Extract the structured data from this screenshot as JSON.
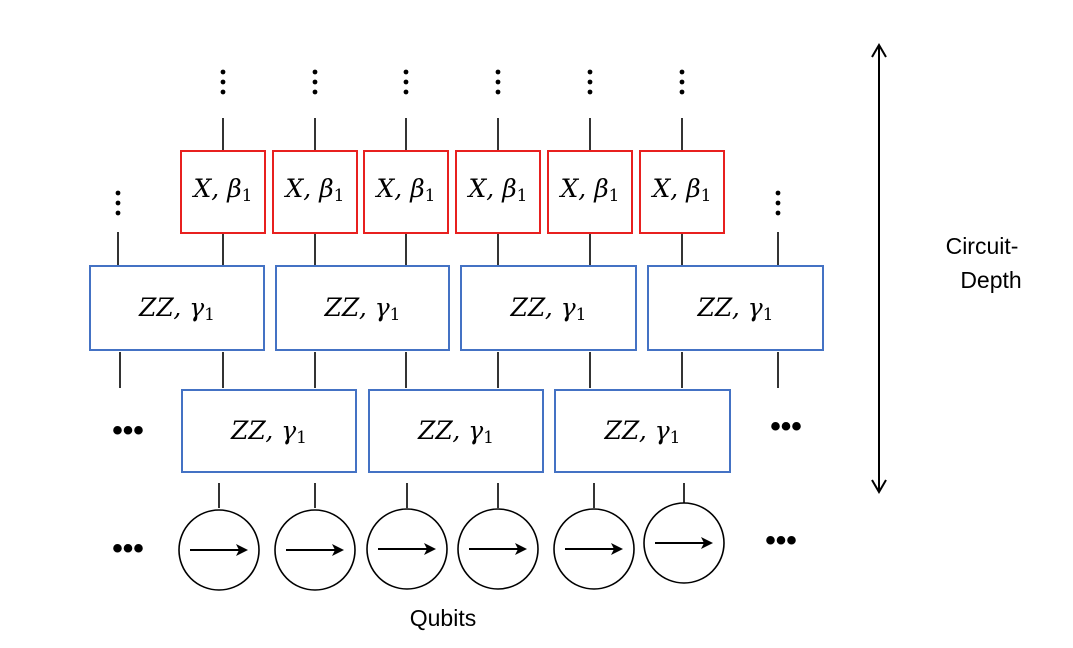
{
  "x_gate": {
    "op": "X",
    "param_symbol": "β",
    "param_index": "1",
    "count": 6,
    "border_color": "#e8201f"
  },
  "zz_gate": {
    "op": "ZZ",
    "param_symbol": "γ",
    "param_index": "1",
    "border_color": "#4472c4"
  },
  "zz_layer_upper": {
    "count": 4
  },
  "zz_layer_lower": {
    "count": 3
  },
  "qubit_count": 6,
  "labels": {
    "qubits": "Qubits",
    "depth_line1": "Circuit-",
    "depth_line2": "Depth",
    "ellipsis": "•••"
  },
  "icons": {
    "qubit": "right-arrow-in-circle-icon",
    "vertical_continuation": "vertical-ellipsis-icon",
    "depth_axis": "double-headed-vertical-arrow-icon"
  }
}
